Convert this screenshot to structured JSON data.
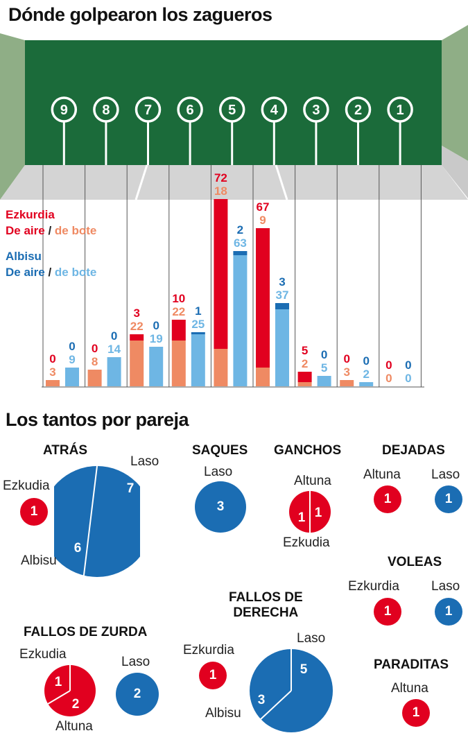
{
  "title": "Dónde golpearon los zagueros",
  "legend": {
    "ezkurdia": "Ezkurdia",
    "albisu": "Albisu",
    "de_aire": "De aire",
    "slash": "/",
    "de_bote": "de bote"
  },
  "colors": {
    "ezkurdia_aire": "#e1001f",
    "ezkurdia_bote": "#ef8a63",
    "albisu_aire": "#1b6db3",
    "albisu_bote": "#6eb6e4",
    "frontis": "#1b6b3a"
  },
  "chart_data": {
    "type": "bar",
    "zones": [
      "9",
      "8",
      "7",
      "6",
      "5",
      "4",
      "3",
      "2",
      "1"
    ],
    "series": [
      {
        "name": "Ezkurdia De aire",
        "values": [
          0,
          0,
          3,
          10,
          72,
          67,
          5,
          0,
          0
        ]
      },
      {
        "name": "Ezkurdia de bote",
        "values": [
          3,
          8,
          22,
          22,
          18,
          9,
          2,
          3,
          0
        ]
      },
      {
        "name": "Albisu De aire",
        "values": [
          0,
          0,
          0,
          1,
          2,
          3,
          0,
          0,
          0
        ]
      },
      {
        "name": "Albisu de bote",
        "values": [
          9,
          14,
          19,
          25,
          63,
          37,
          5,
          2,
          0
        ]
      }
    ],
    "stacked": true
  },
  "tantos": {
    "title": "Los tantos por pareja",
    "atras": {
      "title": "ATRÁS",
      "ezkudia_label": "Ezkudia",
      "ezkudia_value": "1",
      "laso_label": "Laso",
      "laso_value": "7",
      "albisu_label": "Albisu",
      "albisu_value": "6"
    },
    "saques": {
      "title": "SAQUES",
      "laso_label": "Laso",
      "laso_value": "3"
    },
    "ganchos": {
      "title": "GANCHOS",
      "altuna_label": "Altuna",
      "altuna_value": "1",
      "ezkudia_label": "Ezkudia",
      "ezkudia_value": "1"
    },
    "dejadas": {
      "title": "DEJADAS",
      "altuna_label": "Altuna",
      "altuna_value": "1",
      "laso_label": "Laso",
      "laso_value": "1"
    },
    "voleas": {
      "title": "VOLEAS",
      "ezkurdia_label": "Ezkurdia",
      "ezkurdia_value": "1",
      "laso_label": "Laso",
      "laso_value": "1"
    },
    "fallos_derecha": {
      "title1": "FALLOS DE",
      "title2": "DERECHA",
      "ezkurdia_label": "Ezkurdia",
      "ezkurdia_value": "1",
      "laso_label": "Laso",
      "laso_value": "5",
      "albisu_label": "Albisu",
      "albisu_value": "3"
    },
    "fallos_zurda": {
      "title": "FALLOS DE ZURDA",
      "ezkudia_label": "Ezkudia",
      "ezkudia_value": "1",
      "altuna_label": "Altuna",
      "altuna_value": "2",
      "laso_label": "Laso",
      "laso_value": "2"
    },
    "paraditas": {
      "title": "PARADITAS",
      "altuna_label": "Altuna",
      "altuna_value": "1"
    }
  }
}
